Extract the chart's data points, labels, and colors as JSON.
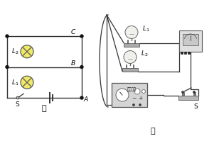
{
  "bg_color": "#ffffff",
  "wire_color": "#333333",
  "bulb_fill": "#f0e868",
  "bulb_edge": "#555555",
  "node_color": "#111111",
  "gray_dark": "#555555",
  "gray_mid": "#888888",
  "gray_light": "#cccccc",
  "gray_box": "#d8d8d8",
  "label_jia": "甲",
  "label_yi": "乙",
  "label_power": "学生电源"
}
